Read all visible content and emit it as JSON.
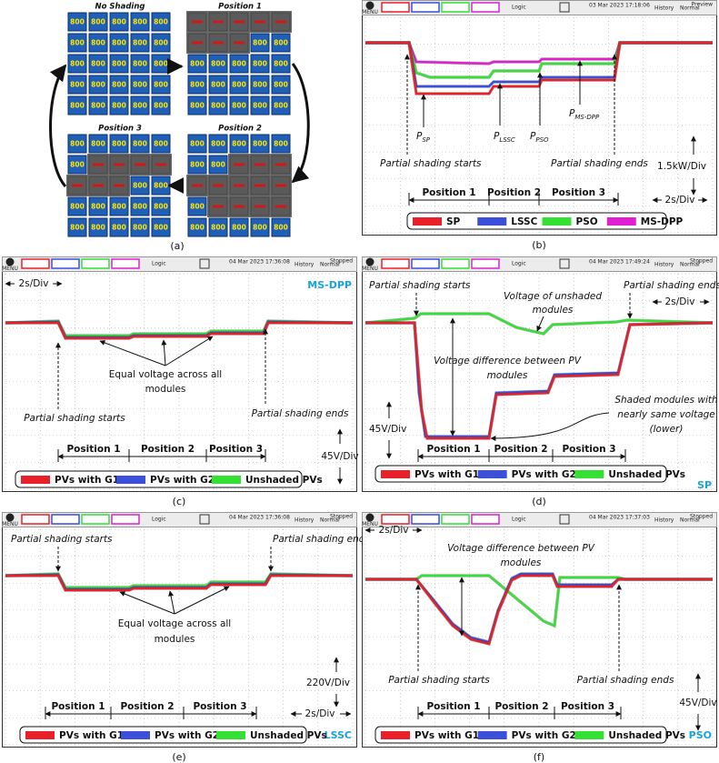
{
  "panel_a": {
    "label": "(a)",
    "titles": [
      "No Shading",
      "Position 1",
      "Position 3",
      "Position 2"
    ],
    "module_label": "800"
  },
  "panel_b": {
    "label": "(b)",
    "header": {
      "menu": "MENU",
      "logic": "Logic",
      "date": "03 Mar 2023 17:18:06",
      "history": "History",
      "mode": "Normal",
      "status": "Preview"
    },
    "starts": "Partial shading starts",
    "ends": "Partial shading ends",
    "p_sp": {
      "main": "P",
      "sub": "SP"
    },
    "p_lssc": {
      "main": "P",
      "sub": "LSSC"
    },
    "p_pso": {
      "main": "P",
      "sub": "PSO"
    },
    "p_msdpp": {
      "main": "P",
      "sub": "MS-DPP"
    },
    "volt_div": "1.5kW/Div",
    "time_div": "2s/Div",
    "positions": [
      "Position 1",
      "Position 2",
      "Position 3"
    ],
    "legend": [
      "SP",
      "LSSC",
      "PSO",
      "MS-DPP"
    ]
  },
  "panel_c": {
    "label": "(c)",
    "header": {
      "menu": "MENU",
      "logic": "Logic",
      "date": "04 Mar 2023 17:36:08",
      "history": "History",
      "mode": "Normal",
      "status": "Stopped"
    },
    "time_div": "2s/Div",
    "mode_name": "MS-DPP",
    "equal": [
      "Equal voltage across all",
      "modules"
    ],
    "starts": "Partial shading starts",
    "ends": "Partial shading ends",
    "volt_div": "45V/Div",
    "positions": [
      "Position 1",
      "Position 2",
      "Position 3"
    ],
    "legend": [
      "PVs with G1",
      "PVs with G2",
      "Unshaded PVs"
    ]
  },
  "panel_d": {
    "label": "(d)",
    "header": {
      "menu": "MENU",
      "logic": "Logic",
      "date": "04 Mar 2023 17:49:24",
      "history": "History",
      "mode": "Normal",
      "status": "Stopped"
    },
    "starts": "Partial shading starts",
    "ends": "Partial shading ends",
    "time_div": "2s/Div",
    "unshaded": [
      "Voltage of unshaded",
      "modules"
    ],
    "difference": [
      "Voltage difference between PV",
      "modules"
    ],
    "shaded": [
      "Shaded modules with",
      "nearly same voltage",
      "(lower)"
    ],
    "volt_div": "45V/Div",
    "mode_name": "SP",
    "positions": [
      "Position 1",
      "Position 2",
      "Position 3"
    ],
    "legend": [
      "PVs with G1",
      "PVs with G2",
      "Unshaded PVs"
    ]
  },
  "panel_e": {
    "label": "(e)",
    "header": {
      "menu": "MENU",
      "logic": "Logic",
      "date": "04 Mar 2023 17:36:08",
      "history": "History",
      "mode": "Normal",
      "status": "Stopped"
    },
    "starts": "Partial shading starts",
    "ends": "Partial shading ends",
    "equal": [
      "Equal voltage across all",
      "modules"
    ],
    "volt_div": "220V/Div",
    "time_div": "2s/Div",
    "mode_name": "LSSC",
    "positions": [
      "Position 1",
      "Position 2",
      "Position 3"
    ],
    "legend": [
      "PVs with G1",
      "PVs with G2",
      "Unshaded PVs"
    ]
  },
  "panel_f": {
    "label": "(f)",
    "header": {
      "menu": "MENU",
      "logic": "Logic",
      "date": "04 Mar 2023 17:37:03",
      "history": "History",
      "mode": "Normal",
      "status": "Stopped"
    },
    "time_div": "2s/Div",
    "difference": [
      "Voltage difference between PV",
      "modules"
    ],
    "starts": "Partial shading starts",
    "ends": "Partial shading ends",
    "volt_div": "45V/Div",
    "mode_name": "PSO",
    "positions": [
      "Position 1",
      "Position 2",
      "Position 3"
    ],
    "legend": [
      "PVs with G1",
      "PVs with G2",
      "Unshaded PVs"
    ]
  }
}
